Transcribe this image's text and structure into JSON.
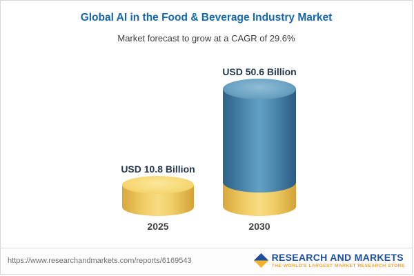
{
  "title": "Global AI in the Food & Beverage Industry Market",
  "subtitle": "Market forecast to grow at a CAGR of 29.6%",
  "chart_data": {
    "type": "bar",
    "subtype": "3d-cylinder",
    "title": "Global AI in the Food & Beverage Industry Market",
    "subtitle": "Market forecast to grow at a CAGR of 29.6%",
    "categories": [
      "2025",
      "2030"
    ],
    "values": [
      10.8,
      50.6
    ],
    "unit": "USD Billion",
    "value_labels": [
      "USD 10.8 Billion",
      "USD 50.6 Billion"
    ],
    "cagr": "29.6%",
    "bar_colors": [
      "#f0cd67",
      "#4d88ae"
    ],
    "bar_accent_base_color": "#f0cd67",
    "legend": false,
    "grid": false,
    "xlabel": "",
    "ylabel": ""
  },
  "footer": {
    "url": "https://www.researchandmarkets.com/reports/6169543",
    "brand": "RESEARCH AND MARKETS",
    "tagline": "THE WORLD'S LARGEST MARKET RESEARCH STORE"
  },
  "colors": {
    "title_blue": "#1467ae",
    "value_label": "#25384e",
    "yellow": "#f0cd67",
    "blue": "#4d88ae",
    "brand_blue": "#1c4f9e",
    "brand_amber": "#eda22b"
  }
}
